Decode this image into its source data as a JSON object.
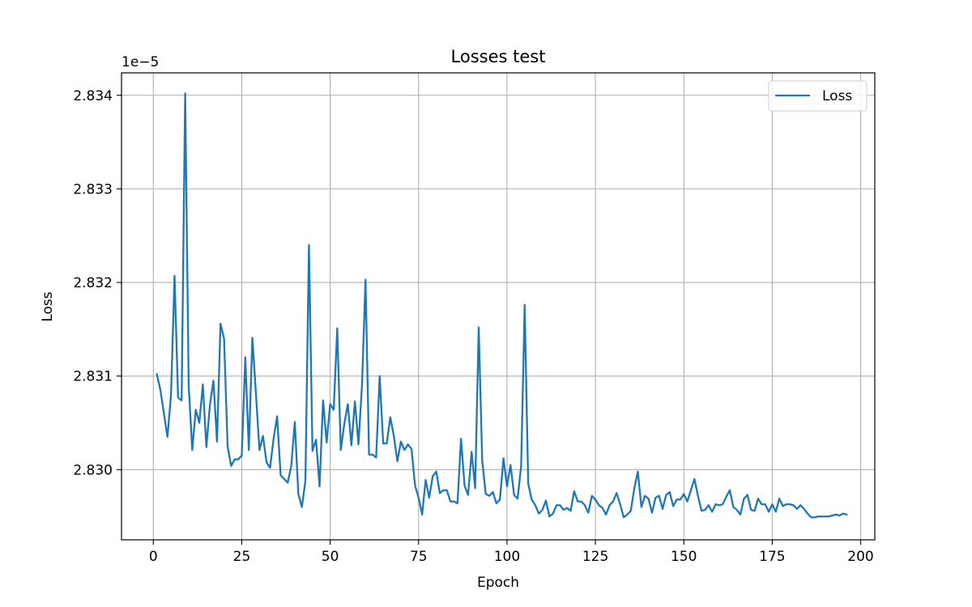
{
  "chart_data": {
    "type": "line",
    "title": "Losses test",
    "xlabel": "Epoch",
    "ylabel": "Loss",
    "y_offset_text": "1e−5",
    "xlim": [
      -9,
      204
    ],
    "ylim": [
      2.82925,
      2.83424
    ],
    "x_ticks": [
      0,
      25,
      50,
      75,
      100,
      125,
      150,
      175,
      200
    ],
    "x_tick_labels": [
      "0",
      "25",
      "50",
      "75",
      "100",
      "125",
      "150",
      "175",
      "200"
    ],
    "y_ticks": [
      2.83,
      2.831,
      2.832,
      2.833,
      2.834
    ],
    "y_tick_labels": [
      "2.830",
      "2.831",
      "2.832",
      "2.833",
      "2.834"
    ],
    "grid": true,
    "legend_placement": "top-right",
    "series": [
      {
        "name": "Loss",
        "color": "#1f77b4",
        "x": [
          1,
          2,
          3,
          4,
          5,
          6,
          7,
          8,
          9,
          10,
          11,
          12,
          13,
          14,
          15,
          16,
          17,
          18,
          19,
          20,
          21,
          22,
          23,
          24,
          25,
          26,
          27,
          28,
          29,
          30,
          31,
          32,
          33,
          34,
          35,
          36,
          37,
          38,
          39,
          40,
          41,
          42,
          43,
          44,
          45,
          46,
          47,
          48,
          49,
          50,
          51,
          52,
          53,
          54,
          55,
          56,
          57,
          58,
          59,
          60,
          61,
          62,
          63,
          64,
          65,
          66,
          67,
          68,
          69,
          70,
          71,
          72,
          73,
          74,
          75,
          76,
          77,
          78,
          79,
          80,
          81,
          82,
          83,
          84,
          85,
          86,
          87,
          88,
          89,
          90,
          91,
          92,
          93,
          94,
          95,
          96,
          97,
          98,
          99,
          100,
          101,
          102,
          103,
          104,
          105,
          106,
          107,
          108,
          109,
          110,
          111,
          112,
          113,
          114,
          115,
          116,
          117,
          118,
          119,
          120,
          121,
          122,
          123,
          124,
          125,
          126,
          127,
          128,
          129,
          130,
          131,
          132,
          133,
          134,
          135,
          136,
          137,
          138,
          139,
          140,
          141,
          142,
          143,
          144,
          145,
          146,
          147,
          148,
          149,
          150,
          151,
          152,
          153,
          154,
          155,
          156,
          157,
          158,
          159,
          160,
          161,
          162,
          163,
          164,
          165,
          166,
          167,
          168,
          169,
          170,
          171,
          172,
          173,
          174,
          175,
          176,
          177,
          178,
          179,
          180,
          181,
          182,
          183,
          184,
          185,
          186,
          187,
          188,
          189,
          190,
          191,
          192,
          193,
          194,
          195,
          196
        ],
        "values": [
          2.83102,
          2.83085,
          2.8306,
          2.83035,
          2.8308,
          2.83207,
          2.83077,
          2.83074,
          2.83402,
          2.8309,
          2.83021,
          2.83064,
          2.8305,
          2.83091,
          2.83024,
          2.83069,
          2.83095,
          2.8303,
          2.83156,
          2.8314,
          2.83025,
          2.83004,
          2.83011,
          2.83011,
          2.83015,
          2.8312,
          2.83021,
          2.83141,
          2.83082,
          2.83021,
          2.83036,
          2.83008,
          2.83002,
          2.83033,
          2.83057,
          2.82994,
          2.8299,
          2.82986,
          2.83004,
          2.83051,
          2.82974,
          2.8296,
          2.82988,
          2.8324,
          2.8302,
          2.83032,
          2.82982,
          2.83074,
          2.83029,
          2.8307,
          2.83064,
          2.83151,
          2.83021,
          2.83049,
          2.8307,
          2.83026,
          2.83073,
          2.83027,
          2.8309,
          2.83203,
          2.83016,
          2.83016,
          2.83013,
          2.831,
          2.83028,
          2.83028,
          2.83056,
          2.83036,
          2.83009,
          2.8303,
          2.83021,
          2.83027,
          2.83022,
          2.82983,
          2.8297,
          2.82952,
          2.82989,
          2.8297,
          2.82993,
          2.82998,
          2.82975,
          2.82978,
          2.82978,
          2.82966,
          2.82966,
          2.82964,
          2.83033,
          2.82983,
          2.82973,
          2.83019,
          2.8298,
          2.83152,
          2.83009,
          2.82974,
          2.82972,
          2.82976,
          2.82964,
          2.82968,
          2.83012,
          2.82982,
          2.83005,
          2.82973,
          2.82969,
          2.83004,
          2.83176,
          2.82985,
          2.82968,
          2.82962,
          2.82953,
          2.82957,
          2.82967,
          2.8295,
          2.82953,
          2.82962,
          2.82962,
          2.82957,
          2.82959,
          2.82956,
          2.82977,
          2.82966,
          2.82966,
          2.82962,
          2.82954,
          2.82972,
          2.82968,
          2.82962,
          2.82959,
          2.82952,
          2.82962,
          2.82966,
          2.82975,
          2.82963,
          2.82949,
          2.82952,
          2.82956,
          2.8298,
          2.82998,
          2.8296,
          2.82972,
          2.82969,
          2.82954,
          2.8297,
          2.82972,
          2.82958,
          2.82973,
          2.82976,
          2.82961,
          2.82968,
          2.82968,
          2.82974,
          2.82966,
          2.82978,
          2.8299,
          2.82972,
          2.82956,
          2.82957,
          2.82962,
          2.82955,
          2.82963,
          2.82962,
          2.82963,
          2.82971,
          2.82978,
          2.8296,
          2.82957,
          2.82952,
          2.82969,
          2.82973,
          2.82957,
          2.82956,
          2.82969,
          2.82963,
          2.82963,
          2.82955,
          2.82963,
          2.82955,
          2.82969,
          2.82961,
          2.82963,
          2.82963,
          2.82962,
          2.82958,
          2.82962,
          2.82958,
          2.82953,
          2.82949,
          2.82949,
          2.8295,
          2.8295,
          2.8295,
          2.8295,
          2.82951,
          2.82952,
          2.82951,
          2.82953,
          2.82952
        ]
      }
    ]
  }
}
